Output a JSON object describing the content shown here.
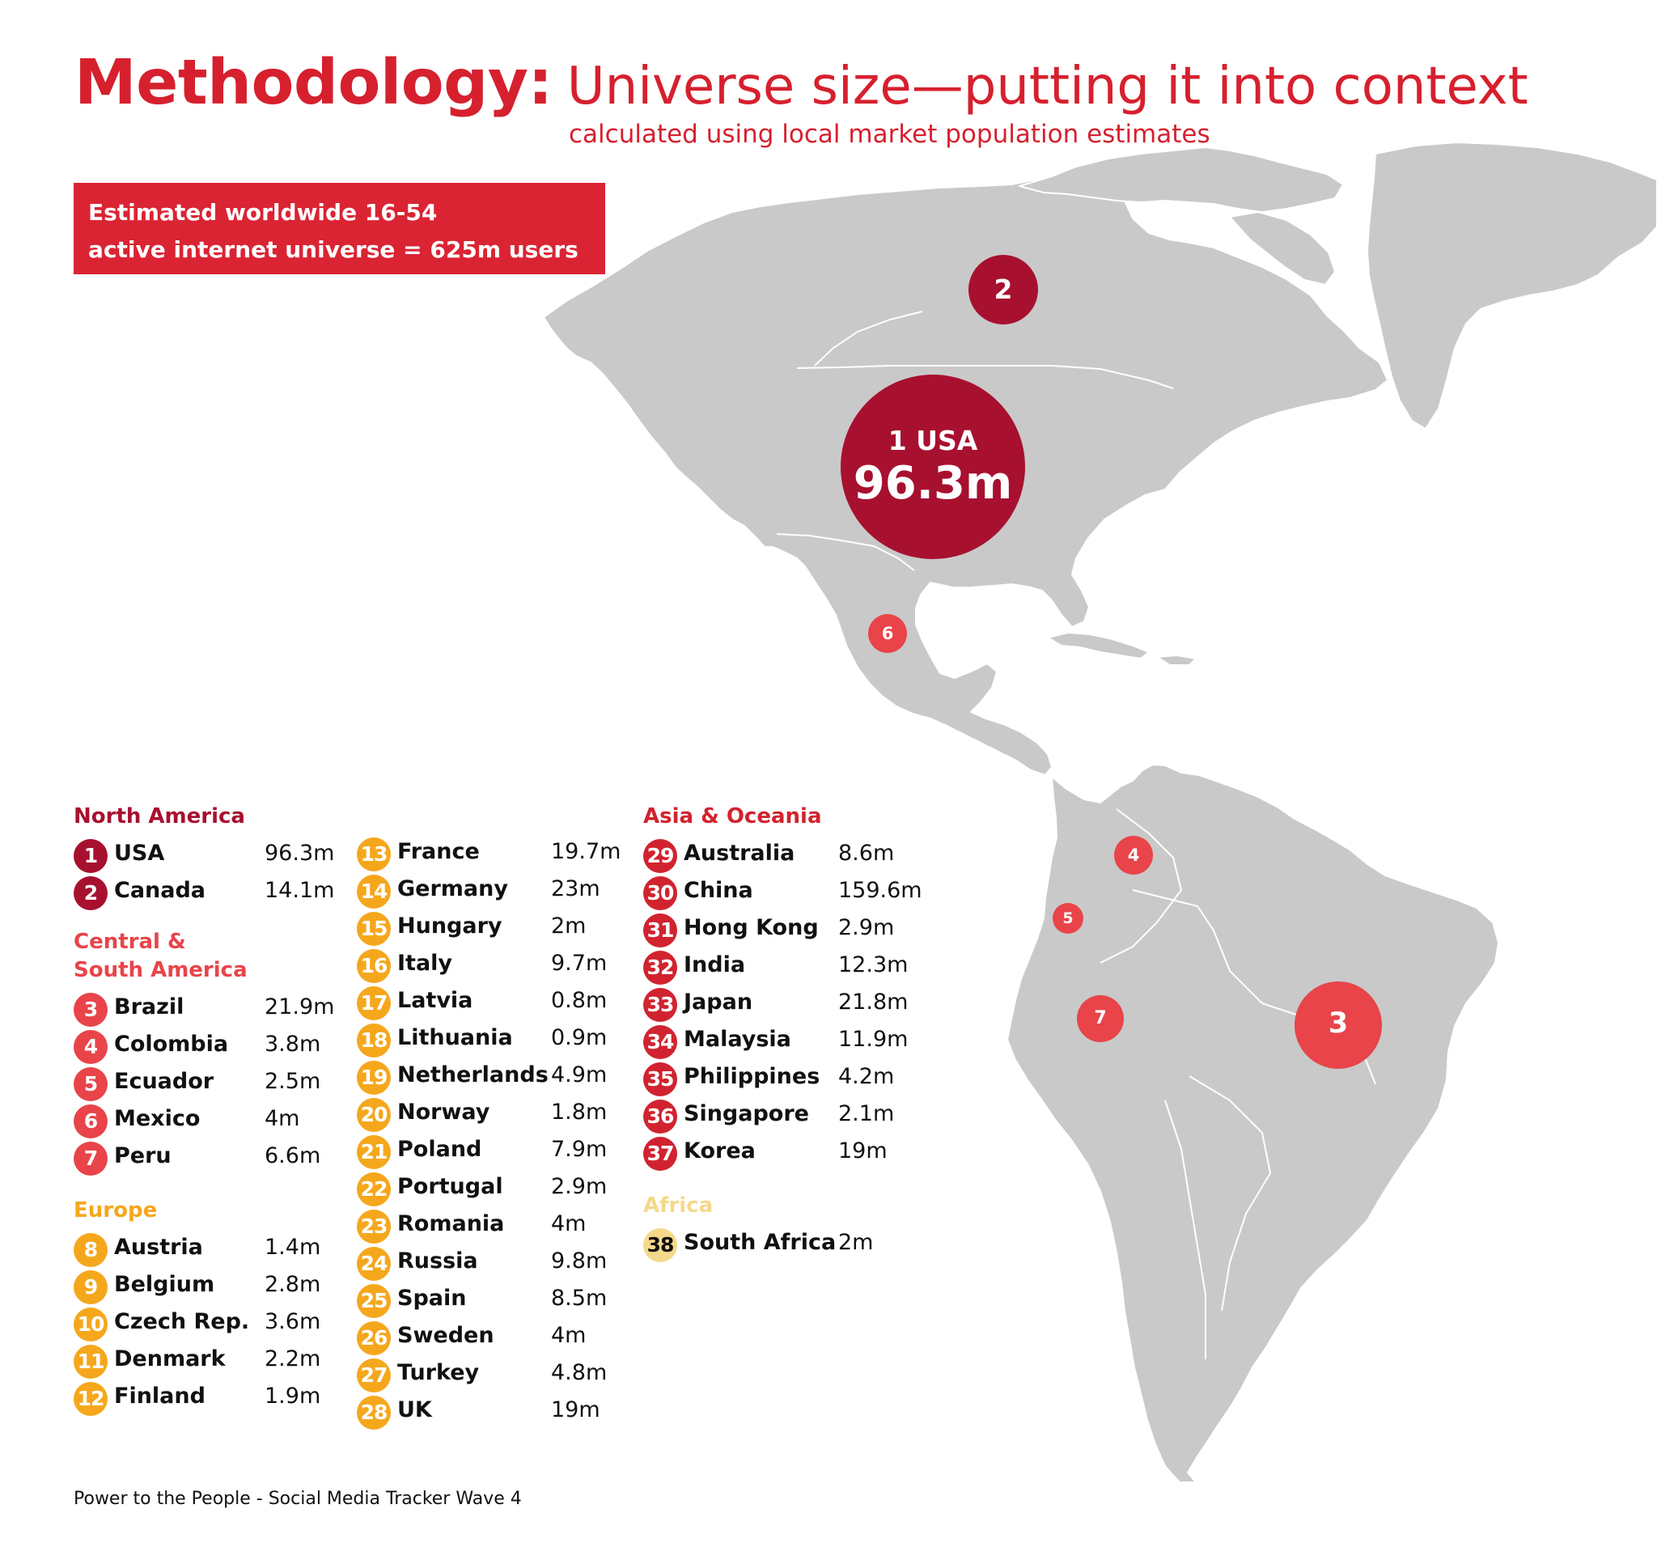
{
  "title": {
    "main": "Methodology:",
    "rest": "Universe size—putting it into context",
    "subtitle": "calculated using local market population estimates"
  },
  "banner": {
    "line1": "Estimated worldwide 16-54",
    "line2": "active internet universe = 625m users"
  },
  "colors": {
    "north_america": "#a8102f",
    "central_south_america": "#e8444a",
    "europe": "#f5a71c",
    "asia_oceania": "#d1232f",
    "africa": "#f5d98a",
    "land": "#c9c9c9",
    "border": "#ffffff"
  },
  "regions": {
    "north_america": {
      "heading": "North America",
      "items": [
        {
          "num": "1",
          "country": "USA",
          "value": "96.3m"
        },
        {
          "num": "2",
          "country": "Canada",
          "value": "14.1m"
        }
      ]
    },
    "central_south_america": {
      "heading_line1": "Central &",
      "heading_line2": "South America",
      "items": [
        {
          "num": "3",
          "country": "Brazil",
          "value": "21.9m"
        },
        {
          "num": "4",
          "country": "Colombia",
          "value": "3.8m"
        },
        {
          "num": "5",
          "country": "Ecuador",
          "value": "2.5m"
        },
        {
          "num": "6",
          "country": "Mexico",
          "value": "4m"
        },
        {
          "num": "7",
          "country": "Peru",
          "value": "6.6m"
        }
      ]
    },
    "europe": {
      "heading": "Europe",
      "items": [
        {
          "num": "8",
          "country": "Austria",
          "value": "1.4m"
        },
        {
          "num": "9",
          "country": "Belgium",
          "value": "2.8m"
        },
        {
          "num": "10",
          "country": "Czech Rep.",
          "value": "3.6m"
        },
        {
          "num": "11",
          "country": "Denmark",
          "value": "2.2m"
        },
        {
          "num": "12",
          "country": "Finland",
          "value": "1.9m"
        },
        {
          "num": "13",
          "country": "France",
          "value": "19.7m"
        },
        {
          "num": "14",
          "country": "Germany",
          "value": "23m"
        },
        {
          "num": "15",
          "country": "Hungary",
          "value": "2m"
        },
        {
          "num": "16",
          "country": "Italy",
          "value": "9.7m"
        },
        {
          "num": "17",
          "country": "Latvia",
          "value": "0.8m"
        },
        {
          "num": "18",
          "country": "Lithuania",
          "value": "0.9m"
        },
        {
          "num": "19",
          "country": "Netherlands",
          "value": "4.9m"
        },
        {
          "num": "20",
          "country": "Norway",
          "value": "1.8m"
        },
        {
          "num": "21",
          "country": "Poland",
          "value": "7.9m"
        },
        {
          "num": "22",
          "country": "Portugal",
          "value": "2.9m"
        },
        {
          "num": "23",
          "country": "Romania",
          "value": "4m"
        },
        {
          "num": "24",
          "country": "Russia",
          "value": "9.8m"
        },
        {
          "num": "25",
          "country": "Spain",
          "value": "8.5m"
        },
        {
          "num": "26",
          "country": "Sweden",
          "value": "4m"
        },
        {
          "num": "27",
          "country": "Turkey",
          "value": "4.8m"
        },
        {
          "num": "28",
          "country": "UK",
          "value": "19m"
        }
      ]
    },
    "asia_oceania": {
      "heading": "Asia & Oceania",
      "items": [
        {
          "num": "29",
          "country": "Australia",
          "value": "8.6m"
        },
        {
          "num": "30",
          "country": "China",
          "value": "159.6m"
        },
        {
          "num": "31",
          "country": "Hong Kong",
          "value": "2.9m"
        },
        {
          "num": "32",
          "country": "India",
          "value": "12.3m"
        },
        {
          "num": "33",
          "country": "Japan",
          "value": "21.8m"
        },
        {
          "num": "34",
          "country": "Malaysia",
          "value": "11.9m"
        },
        {
          "num": "35",
          "country": "Philippines",
          "value": "4.2m"
        },
        {
          "num": "36",
          "country": "Singapore",
          "value": "2.1m"
        },
        {
          "num": "37",
          "country": "Korea",
          "value": "19m"
        }
      ]
    },
    "africa": {
      "heading": "Africa",
      "items": [
        {
          "num": "38",
          "country": "South Africa",
          "value": "2m"
        }
      ]
    }
  },
  "map_bubbles": {
    "usa": {
      "num": "1",
      "label": "1 USA",
      "value": "96.3m"
    },
    "canada": {
      "num": "2"
    },
    "brazil": {
      "num": "3"
    },
    "colombia": {
      "num": "4"
    },
    "ecuador": {
      "num": "5"
    },
    "mexico": {
      "num": "6"
    },
    "peru": {
      "num": "7"
    }
  },
  "footer": "Power to the People - Social Media Tracker Wave 4"
}
